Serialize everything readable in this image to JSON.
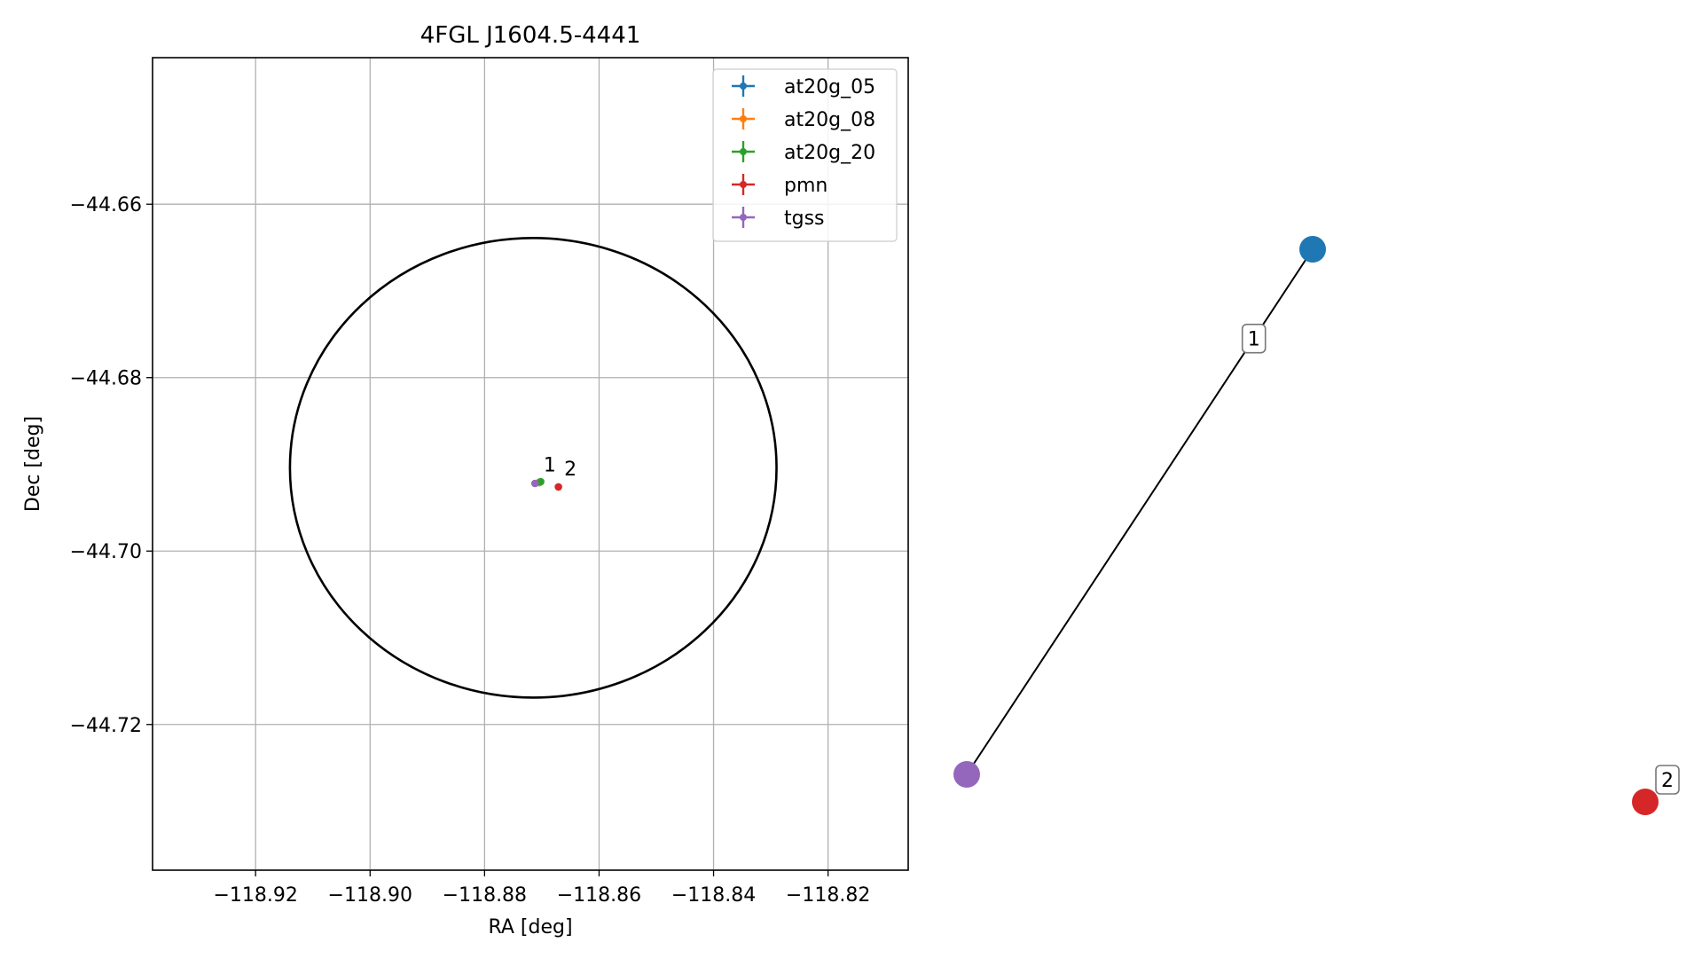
{
  "chart_data": [
    {
      "type": "scatter",
      "title": "4FGL J1604.5-4441",
      "xlabel": "RA [deg]",
      "ylabel": "Dec [deg]",
      "xlim": [
        -118.938,
        -118.806
      ],
      "ylim": [
        -44.7368,
        -44.6431
      ],
      "xticks": [
        {
          "value": -118.92,
          "label": "−118.92"
        },
        {
          "value": -118.9,
          "label": "−118.90"
        },
        {
          "value": -118.88,
          "label": "−118.88"
        },
        {
          "value": -118.86,
          "label": "−118.86"
        },
        {
          "value": -118.84,
          "label": "−118.84"
        },
        {
          "value": -118.82,
          "label": "−118.82"
        }
      ],
      "yticks": [
        {
          "value": -44.66,
          "label": "−44.66"
        },
        {
          "value": -44.68,
          "label": "−44.68"
        },
        {
          "value": -44.7,
          "label": "−44.70"
        },
        {
          "value": -44.72,
          "label": "−44.72"
        }
      ],
      "grid": true,
      "legend_position": "top-right",
      "series": [
        {
          "name": "at20g_05",
          "color": "#1f77b4",
          "points": [
            {
              "x": -118.8705,
              "y": -44.6921
            }
          ]
        },
        {
          "name": "at20g_08",
          "color": "#ff7f0e",
          "points": [
            {
              "x": -118.8705,
              "y": -44.6921
            }
          ]
        },
        {
          "name": "at20g_20",
          "color": "#2ca02c",
          "points": [
            {
              "x": -118.8702,
              "y": -44.692
            }
          ]
        },
        {
          "name": "pmn",
          "color": "#d62728",
          "points": [
            {
              "x": -118.8671,
              "y": -44.6926
            }
          ]
        },
        {
          "name": "tgss",
          "color": "#9467bd",
          "points": [
            {
              "x": -118.8712,
              "y": -44.6922
            }
          ]
        }
      ],
      "point_labels": [
        {
          "text": "1",
          "x": -118.8697,
          "y": -44.6908
        },
        {
          "text": "2",
          "x": -118.8661,
          "y": -44.6913
        }
      ],
      "ellipse": {
        "color": "#000000",
        "center_x": -118.8715,
        "center_y": -44.6904,
        "semi_x": 0.0425,
        "semi_y": 0.0265
      }
    },
    {
      "type": "network",
      "nodes": [
        {
          "id": "at20g",
          "color": "#1f77b4"
        },
        {
          "id": "tgss",
          "color": "#9467bd"
        },
        {
          "id": "pmn",
          "color": "#d62728"
        }
      ],
      "edges": [
        {
          "from": "at20g",
          "to": "tgss",
          "label": "1"
        }
      ],
      "node_labels": [
        {
          "node": "pmn",
          "label": "2"
        }
      ]
    }
  ]
}
